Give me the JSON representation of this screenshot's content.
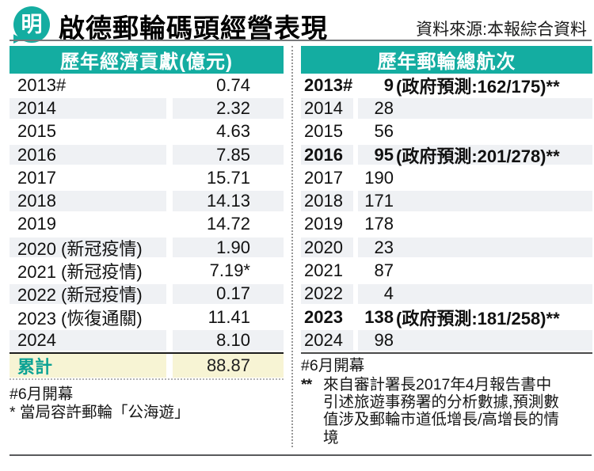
{
  "masthead": {
    "logo_char": "明",
    "title": "啟德郵輪碼頭經營表現",
    "source": "資料來源:本報綜合資料"
  },
  "left_table": {
    "header": "歷年經濟貢獻(億元)",
    "rows": [
      {
        "year": "2013#",
        "value": "0.74"
      },
      {
        "year": "2014",
        "value": "2.32"
      },
      {
        "year": "2015",
        "value": "4.63"
      },
      {
        "year": "2016",
        "value": "7.85"
      },
      {
        "year": "2017",
        "value": "15.71"
      },
      {
        "year": "2018",
        "value": "14.13"
      },
      {
        "year": "2019",
        "value": "14.72"
      },
      {
        "year": "2020 (新冠疫情)",
        "value": "1.90"
      },
      {
        "year": "2021 (新冠疫情)",
        "value": "7.19*"
      },
      {
        "year": "2022 (新冠疫情)",
        "value": "0.17"
      },
      {
        "year": "2023 (恢復通關)",
        "value": "11.41"
      },
      {
        "year": "2024",
        "value": "8.10"
      }
    ],
    "total_label": "累計",
    "total_value": "88.87",
    "footnote_1": "#6月開幕",
    "footnote_2": "* 當局容許郵輪「公海遊」"
  },
  "right_table": {
    "header": "歷年郵輪總航次",
    "rows": [
      {
        "year": "2013#",
        "value": "9",
        "note": "(政府預測:162/175)**",
        "bold": true
      },
      {
        "year": "2014",
        "value": "28",
        "note": "",
        "bold": false
      },
      {
        "year": "2015",
        "value": "56",
        "note": "",
        "bold": false
      },
      {
        "year": "2016",
        "value": "95",
        "note": "(政府預測:201/278)**",
        "bold": true
      },
      {
        "year": "2017",
        "value": "190",
        "note": "",
        "bold": false
      },
      {
        "year": "2018",
        "value": "171",
        "note": "",
        "bold": false
      },
      {
        "year": "2019",
        "value": "178",
        "note": "",
        "bold": false
      },
      {
        "year": "2020",
        "value": "23",
        "note": "",
        "bold": false
      },
      {
        "year": "2021",
        "value": "87",
        "note": "",
        "bold": false
      },
      {
        "year": "2022",
        "value": "4",
        "note": "",
        "bold": false
      },
      {
        "year": "2023",
        "value": "138",
        "note": "(政府預測:181/258)**",
        "bold": true
      },
      {
        "year": "2024",
        "value": "98",
        "note": "",
        "bold": false
      }
    ],
    "footnote_1": "#6月開幕",
    "footnote_2_marker": "**",
    "footnote_2_text": "來自審計署長2017年4月報告書中引述旅遊事務署的分析數據,預測數值涉及郵輪市道低增長/高增長的情境"
  },
  "colors": {
    "teal": "#14ADA1",
    "stripe": "#EFF1F4",
    "total_bg": "#F7F4D4",
    "total_text": "#0CA294"
  }
}
